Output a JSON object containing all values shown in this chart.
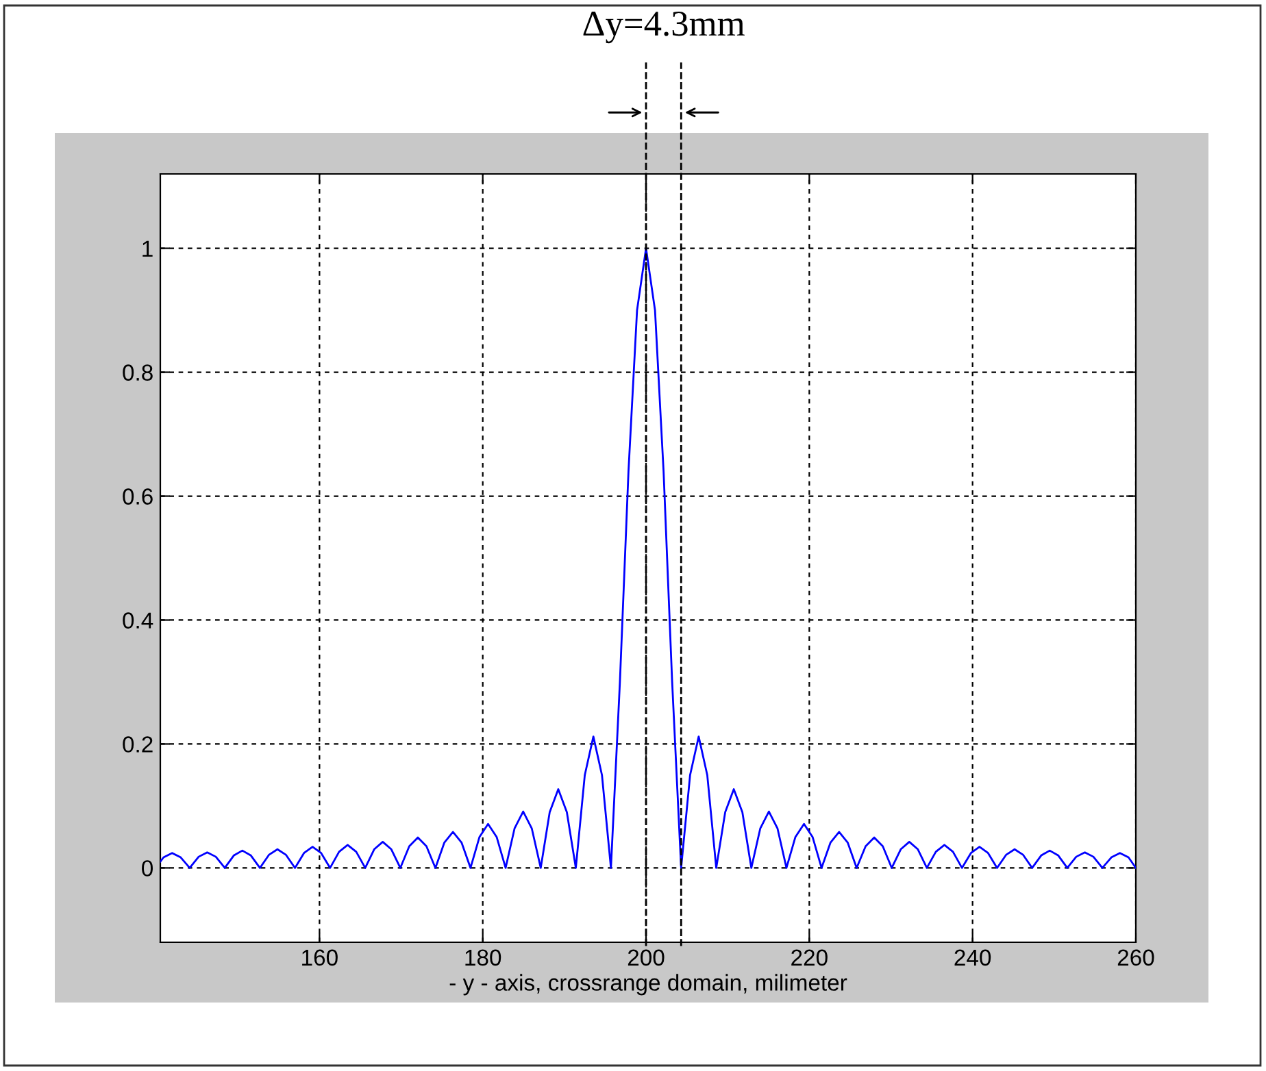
{
  "chart_data": {
    "type": "line",
    "xlabel": "- y - axis, crossrange domain, milimeter",
    "annotations": [
      "Δy=4.3mm"
    ],
    "xlim": [
      140.5,
      260
    ],
    "ylim": [
      -0.12,
      1.12
    ],
    "xticks": [
      160,
      180,
      200,
      220,
      240,
      260
    ],
    "yticks": [
      0,
      0.2,
      0.4,
      0.6,
      0.8,
      1
    ],
    "grid": true,
    "legend": false,
    "marker": "none",
    "line_style": "solid",
    "ref_lines": [
      {
        "axis": "x",
        "value": 200,
        "label": null,
        "color": "#000000",
        "line_style": "dashed"
      },
      {
        "axis": "x",
        "value": 204.3,
        "label": null,
        "color": "#000000",
        "line_style": "dashed"
      }
    ],
    "series": [
      {
        "color": "#0000ff",
        "x": [
          140.5,
          140.9,
          141.95,
          143.0,
          144.1,
          145.2,
          146.25,
          147.3,
          148.4,
          149.5,
          150.55,
          151.6,
          152.7,
          153.8,
          154.85,
          155.9,
          157.0,
          158.1,
          159.15,
          160.2,
          161.3,
          162.4,
          163.45,
          164.5,
          165.6,
          166.7,
          167.75,
          168.8,
          169.9,
          171.0,
          172.05,
          173.1,
          174.2,
          175.3,
          176.35,
          177.4,
          178.5,
          179.6,
          180.65,
          181.7,
          182.8,
          183.9,
          184.95,
          186.0,
          187.1,
          188.2,
          189.25,
          190.3,
          191.4,
          192.5,
          193.55,
          194.6,
          195.7,
          196.8,
          197.85,
          198.9,
          200,
          201.1,
          202.15,
          203.2,
          204.3,
          205.4,
          206.45,
          207.5,
          208.6,
          209.7,
          210.75,
          211.8,
          212.9,
          214.0,
          215.05,
          216.1,
          217.2,
          218.3,
          219.35,
          220.4,
          221.5,
          222.6,
          223.65,
          224.7,
          225.8,
          226.9,
          227.95,
          229.0,
          230.1,
          231.2,
          232.25,
          233.3,
          234.4,
          235.5,
          236.55,
          237.6,
          238.7,
          239.8,
          240.85,
          241.9,
          243.0,
          244.1,
          245.15,
          246.2,
          247.3,
          248.4,
          249.45,
          250.5,
          251.6,
          252.7,
          253.75,
          254.8,
          255.9,
          257.0,
          258.05,
          259.1,
          260
        ],
        "values": [
          0.01,
          0.017,
          0.024,
          0.017,
          0,
          0.018,
          0.025,
          0.018,
          0,
          0.02,
          0.028,
          0.02,
          0,
          0.021,
          0.03,
          0.021,
          0,
          0.024,
          0.034,
          0.024,
          0,
          0.026,
          0.037,
          0.026,
          0,
          0.03,
          0.042,
          0.03,
          0,
          0.035,
          0.049,
          0.035,
          0,
          0.041,
          0.058,
          0.041,
          0,
          0.05,
          0.071,
          0.05,
          0,
          0.064,
          0.091,
          0.064,
          0,
          0.09,
          0.127,
          0.09,
          0,
          0.15,
          0.212,
          0.15,
          0,
          0.3,
          0.64,
          0.9,
          1,
          0.9,
          0.64,
          0.3,
          0,
          0.15,
          0.212,
          0.15,
          0,
          0.09,
          0.127,
          0.09,
          0,
          0.064,
          0.091,
          0.064,
          0,
          0.05,
          0.071,
          0.05,
          0,
          0.041,
          0.058,
          0.041,
          0,
          0.035,
          0.049,
          0.035,
          0,
          0.03,
          0.042,
          0.03,
          0,
          0.026,
          0.037,
          0.026,
          0,
          0.024,
          0.034,
          0.024,
          0,
          0.021,
          0.03,
          0.021,
          0,
          0.02,
          0.028,
          0.02,
          0,
          0.018,
          0.025,
          0.018,
          0,
          0.017,
          0.024,
          0.017,
          0
        ]
      }
    ]
  }
}
